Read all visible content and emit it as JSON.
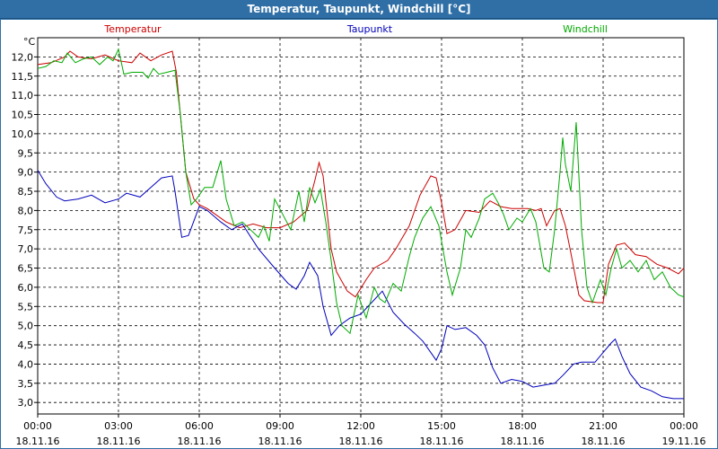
{
  "window": {
    "title": "Temperatur, Taupunkt, Windchill [°C]"
  },
  "chart_data": {
    "type": "line",
    "title": "Temperatur, Taupunkt, Windchill [°C]",
    "ylabel": "°C",
    "xlabel": "",
    "ylim": [
      2.7,
      12.5
    ],
    "xlim": [
      0,
      24
    ],
    "grid": true,
    "legend": "top",
    "y_ticks": [
      "3,0",
      "3,5",
      "4,0",
      "4,5",
      "5,0",
      "5,5",
      "6,0",
      "6,5",
      "7,0",
      "7,5",
      "8,0",
      "8,5",
      "9,0",
      "9,5",
      "10,0",
      "10,5",
      "11,0",
      "11,5",
      "12,0"
    ],
    "y_tick_values": [
      3.0,
      3.5,
      4.0,
      4.5,
      5.0,
      5.5,
      6.0,
      6.5,
      7.0,
      7.5,
      8.0,
      8.5,
      9.0,
      9.5,
      10.0,
      10.5,
      11.0,
      11.5,
      12.0
    ],
    "x_tick_values": [
      0,
      3,
      6,
      9,
      12,
      15,
      18,
      21,
      24
    ],
    "x_ticks": [
      {
        "time": "00:00",
        "date": "18.11.16"
      },
      {
        "time": "03:00",
        "date": "18.11.16"
      },
      {
        "time": "06:00",
        "date": "18.11.16"
      },
      {
        "time": "09:00",
        "date": "18.11.16"
      },
      {
        "time": "12:00",
        "date": "18.11.16"
      },
      {
        "time": "15:00",
        "date": "18.11.16"
      },
      {
        "time": "18:00",
        "date": "18.11.16"
      },
      {
        "time": "21:00",
        "date": "18.11.16"
      },
      {
        "time": "00:00",
        "date": "19.11.16"
      }
    ],
    "series": [
      {
        "name": "Temperatur",
        "color": "#cc0000",
        "points": [
          [
            0,
            11.8
          ],
          [
            0.5,
            11.85
          ],
          [
            1,
            12.0
          ],
          [
            1.2,
            12.15
          ],
          [
            1.5,
            12.0
          ],
          [
            2,
            11.95
          ],
          [
            2.5,
            12.05
          ],
          [
            3,
            11.9
          ],
          [
            3.5,
            11.85
          ],
          [
            3.8,
            12.1
          ],
          [
            4.2,
            11.9
          ],
          [
            4.6,
            12.05
          ],
          [
            5.0,
            12.15
          ],
          [
            5.15,
            11.6
          ],
          [
            5.5,
            9.0
          ],
          [
            5.8,
            8.3
          ],
          [
            6.0,
            8.15
          ],
          [
            6.3,
            8.05
          ],
          [
            7,
            7.7
          ],
          [
            7.5,
            7.55
          ],
          [
            8,
            7.65
          ],
          [
            8.5,
            7.55
          ],
          [
            9,
            7.55
          ],
          [
            9.5,
            7.7
          ],
          [
            10.0,
            8.0
          ],
          [
            10.3,
            8.8
          ],
          [
            10.45,
            9.25
          ],
          [
            10.6,
            8.9
          ],
          [
            10.9,
            7.0
          ],
          [
            11.1,
            6.4
          ],
          [
            11.5,
            5.9
          ],
          [
            11.8,
            5.75
          ],
          [
            12.2,
            6.2
          ],
          [
            12.5,
            6.5
          ],
          [
            13,
            6.7
          ],
          [
            13.3,
            7.0
          ],
          [
            13.8,
            7.6
          ],
          [
            14.2,
            8.4
          ],
          [
            14.6,
            8.9
          ],
          [
            14.8,
            8.85
          ],
          [
            15.0,
            8.2
          ],
          [
            15.2,
            7.4
          ],
          [
            15.5,
            7.5
          ],
          [
            15.9,
            8.0
          ],
          [
            16.4,
            7.95
          ],
          [
            16.8,
            8.25
          ],
          [
            17.2,
            8.1
          ],
          [
            17.6,
            8.05
          ],
          [
            18.2,
            8.05
          ],
          [
            18.5,
            8.0
          ],
          [
            18.7,
            8.05
          ],
          [
            18.9,
            7.6
          ],
          [
            19.2,
            8.0
          ],
          [
            19.4,
            8.05
          ],
          [
            19.6,
            7.6
          ],
          [
            19.8,
            6.9
          ],
          [
            20.1,
            5.8
          ],
          [
            20.3,
            5.65
          ],
          [
            20.8,
            5.6
          ],
          [
            21.0,
            5.6
          ],
          [
            21.2,
            6.6
          ],
          [
            21.5,
            7.1
          ],
          [
            21.8,
            7.15
          ],
          [
            22.2,
            6.85
          ],
          [
            22.6,
            6.8
          ],
          [
            23,
            6.6
          ],
          [
            23.4,
            6.5
          ],
          [
            23.8,
            6.35
          ],
          [
            24,
            6.5
          ]
        ]
      },
      {
        "name": "Taupunkt",
        "color": "#0000bb",
        "points": [
          [
            0,
            9.05
          ],
          [
            0.3,
            8.7
          ],
          [
            0.7,
            8.35
          ],
          [
            1,
            8.25
          ],
          [
            1.5,
            8.3
          ],
          [
            2,
            8.4
          ],
          [
            2.5,
            8.2
          ],
          [
            3,
            8.3
          ],
          [
            3.3,
            8.45
          ],
          [
            3.8,
            8.35
          ],
          [
            4.2,
            8.6
          ],
          [
            4.6,
            8.85
          ],
          [
            5.0,
            8.9
          ],
          [
            5.1,
            8.5
          ],
          [
            5.35,
            7.3
          ],
          [
            5.6,
            7.35
          ],
          [
            6.0,
            8.1
          ],
          [
            6.3,
            8.0
          ],
          [
            6.8,
            7.7
          ],
          [
            7.2,
            7.5
          ],
          [
            7.6,
            7.65
          ],
          [
            8.2,
            7.0
          ],
          [
            8.8,
            6.5
          ],
          [
            9.3,
            6.1
          ],
          [
            9.6,
            5.95
          ],
          [
            9.9,
            6.3
          ],
          [
            10.1,
            6.65
          ],
          [
            10.4,
            6.3
          ],
          [
            10.6,
            5.5
          ],
          [
            10.9,
            4.75
          ],
          [
            11.2,
            5.0
          ],
          [
            11.6,
            5.2
          ],
          [
            12,
            5.3
          ],
          [
            12.4,
            5.6
          ],
          [
            12.8,
            5.9
          ],
          [
            13.2,
            5.35
          ],
          [
            13.6,
            5.05
          ],
          [
            14.0,
            4.8
          ],
          [
            14.3,
            4.6
          ],
          [
            14.6,
            4.3
          ],
          [
            14.8,
            4.1
          ],
          [
            15.0,
            4.4
          ],
          [
            15.2,
            5.0
          ],
          [
            15.5,
            4.9
          ],
          [
            15.9,
            4.95
          ],
          [
            16.3,
            4.75
          ],
          [
            16.6,
            4.5
          ],
          [
            16.9,
            3.9
          ],
          [
            17.2,
            3.5
          ],
          [
            17.6,
            3.6
          ],
          [
            18,
            3.55
          ],
          [
            18.4,
            3.4
          ],
          [
            18.8,
            3.45
          ],
          [
            19.2,
            3.5
          ],
          [
            19.5,
            3.7
          ],
          [
            19.9,
            4.0
          ],
          [
            20.2,
            4.05
          ],
          [
            20.7,
            4.05
          ],
          [
            21.0,
            4.3
          ],
          [
            21.3,
            4.55
          ],
          [
            21.45,
            4.65
          ],
          [
            21.7,
            4.2
          ],
          [
            22,
            3.75
          ],
          [
            22.4,
            3.4
          ],
          [
            22.8,
            3.3
          ],
          [
            23.2,
            3.15
          ],
          [
            23.6,
            3.1
          ],
          [
            24,
            3.1
          ]
        ]
      },
      {
        "name": "Windchill",
        "color": "#00aa00",
        "points": [
          [
            0,
            11.7
          ],
          [
            0.3,
            11.75
          ],
          [
            0.6,
            11.9
          ],
          [
            0.9,
            11.85
          ],
          [
            1.1,
            12.1
          ],
          [
            1.4,
            11.85
          ],
          [
            1.7,
            11.95
          ],
          [
            2.0,
            12.0
          ],
          [
            2.3,
            11.8
          ],
          [
            2.6,
            12.0
          ],
          [
            2.8,
            11.9
          ],
          [
            3.0,
            12.2
          ],
          [
            3.2,
            11.55
          ],
          [
            3.5,
            11.6
          ],
          [
            3.9,
            11.6
          ],
          [
            4.1,
            11.45
          ],
          [
            4.3,
            11.7
          ],
          [
            4.5,
            11.55
          ],
          [
            4.8,
            11.6
          ],
          [
            5.1,
            11.65
          ],
          [
            5.3,
            10.5
          ],
          [
            5.5,
            9.0
          ],
          [
            5.7,
            8.15
          ],
          [
            5.9,
            8.3
          ],
          [
            6.2,
            8.6
          ],
          [
            6.5,
            8.6
          ],
          [
            6.8,
            9.3
          ],
          [
            7.0,
            8.3
          ],
          [
            7.3,
            7.6
          ],
          [
            7.6,
            7.7
          ],
          [
            7.9,
            7.5
          ],
          [
            8.2,
            7.3
          ],
          [
            8.4,
            7.6
          ],
          [
            8.6,
            7.2
          ],
          [
            8.8,
            8.3
          ],
          [
            9.1,
            7.9
          ],
          [
            9.4,
            7.5
          ],
          [
            9.7,
            8.5
          ],
          [
            9.9,
            7.7
          ],
          [
            10.1,
            8.6
          ],
          [
            10.3,
            8.2
          ],
          [
            10.5,
            8.55
          ],
          [
            10.7,
            7.7
          ],
          [
            10.9,
            6.7
          ],
          [
            11.1,
            5.6
          ],
          [
            11.3,
            5.0
          ],
          [
            11.6,
            4.8
          ],
          [
            11.9,
            5.8
          ],
          [
            12.2,
            5.2
          ],
          [
            12.5,
            6.0
          ],
          [
            12.7,
            5.7
          ],
          [
            12.9,
            5.6
          ],
          [
            13.2,
            6.1
          ],
          [
            13.5,
            5.9
          ],
          [
            13.8,
            6.8
          ],
          [
            14.0,
            7.3
          ],
          [
            14.3,
            7.8
          ],
          [
            14.6,
            8.1
          ],
          [
            14.9,
            7.6
          ],
          [
            15.2,
            6.4
          ],
          [
            15.4,
            5.8
          ],
          [
            15.7,
            6.5
          ],
          [
            15.9,
            7.5
          ],
          [
            16.1,
            7.3
          ],
          [
            16.4,
            7.8
          ],
          [
            16.6,
            8.3
          ],
          [
            16.9,
            8.45
          ],
          [
            17.1,
            8.2
          ],
          [
            17.3,
            7.9
          ],
          [
            17.5,
            7.5
          ],
          [
            17.8,
            7.8
          ],
          [
            18.0,
            7.7
          ],
          [
            18.3,
            8.05
          ],
          [
            18.5,
            7.7
          ],
          [
            18.8,
            6.5
          ],
          [
            19.0,
            6.4
          ],
          [
            19.2,
            7.5
          ],
          [
            19.4,
            9.0
          ],
          [
            19.5,
            9.9
          ],
          [
            19.6,
            9.2
          ],
          [
            19.8,
            8.5
          ],
          [
            20.0,
            10.3
          ],
          [
            20.2,
            7.5
          ],
          [
            20.4,
            6.0
          ],
          [
            20.6,
            5.6
          ],
          [
            20.9,
            6.2
          ],
          [
            21.1,
            5.8
          ],
          [
            21.3,
            6.5
          ],
          [
            21.5,
            7.0
          ],
          [
            21.7,
            6.5
          ],
          [
            22.0,
            6.7
          ],
          [
            22.3,
            6.4
          ],
          [
            22.6,
            6.7
          ],
          [
            22.9,
            6.2
          ],
          [
            23.2,
            6.4
          ],
          [
            23.5,
            6.0
          ],
          [
            23.8,
            5.8
          ],
          [
            24,
            5.75
          ]
        ]
      }
    ]
  }
}
